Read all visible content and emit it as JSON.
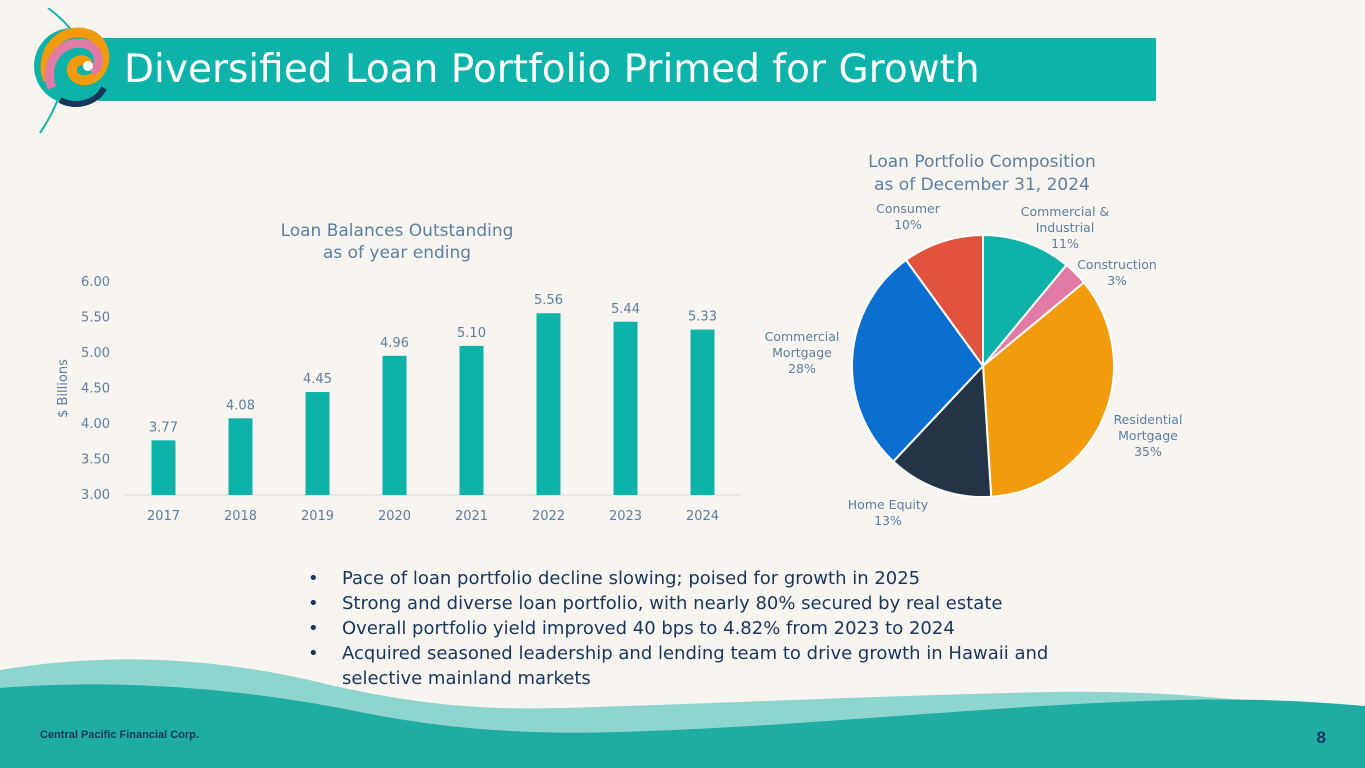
{
  "slide": {
    "title": "Diversified Loan Portfolio Primed for Growth",
    "company": "Central Pacific Financial Corp.",
    "page_number": "8",
    "bullets": [
      "Pace of loan portfolio decline slowing; poised for growth in 2025",
      "Strong and diverse loan portfolio, with nearly 80% secured by real estate",
      "Overall portfolio yield improved 40 bps to 4.82% from 2023 to 2024",
      "Acquired seasoned leadership and lending team to drive growth in Hawaii and selective mainland markets"
    ]
  },
  "colors": {
    "teal": "#0db3a9",
    "navy": "#17365d",
    "label": "#5a7fa2",
    "background": "#f8f5f1"
  },
  "chart_data": [
    {
      "type": "bar",
      "title_lines": [
        "Loan Balances Outstanding",
        "as of year ending"
      ],
      "categories": [
        "2017",
        "2018",
        "2019",
        "2020",
        "2021",
        "2022",
        "2023",
        "2024"
      ],
      "values": [
        3.77,
        4.08,
        4.45,
        4.96,
        5.1,
        5.56,
        5.44,
        5.33
      ],
      "value_labels": [
        "3.77",
        "4.08",
        "4.45",
        "4.96",
        "5.10",
        "5.56",
        "5.44",
        "5.33"
      ],
      "ylabel": "$ Billions",
      "ylim": [
        3.0,
        6.0
      ],
      "yticks": [
        "3.00",
        "3.50",
        "4.00",
        "4.50",
        "5.00",
        "5.50",
        "6.00"
      ],
      "grid": false,
      "bar_color": "#0db3a9"
    },
    {
      "type": "pie",
      "title_lines": [
        "Loan Portfolio Composition",
        "as of December 31, 2024"
      ],
      "slices": [
        {
          "label_lines": [
            "Commercial &",
            "Industrial"
          ],
          "pct_label": "11%",
          "value": 11,
          "color": "#0db3a9"
        },
        {
          "label_lines": [
            "Construction"
          ],
          "pct_label": "3%",
          "value": 3,
          "color": "#e27aa6"
        },
        {
          "label_lines": [
            "Residential",
            "Mortgage"
          ],
          "pct_label": "35%",
          "value": 35,
          "color": "#f29b0d"
        },
        {
          "label_lines": [
            "Home Equity"
          ],
          "pct_label": "13%",
          "value": 13,
          "color": "#243447"
        },
        {
          "label_lines": [
            "Commercial",
            "Mortgage"
          ],
          "pct_label": "28%",
          "value": 28,
          "color": "#0b6fcf"
        },
        {
          "label_lines": [
            "Consumer"
          ],
          "pct_label": "10%",
          "value": 10,
          "color": "#e2533f"
        }
      ]
    }
  ]
}
